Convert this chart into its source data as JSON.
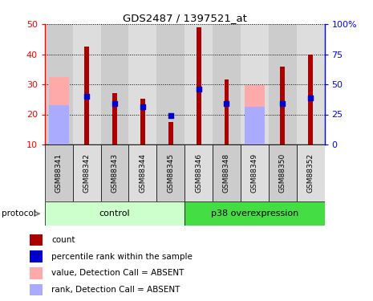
{
  "title": "GDS2487 / 1397521_at",
  "samples": [
    "GSM88341",
    "GSM88342",
    "GSM88343",
    "GSM88344",
    "GSM88345",
    "GSM88346",
    "GSM88348",
    "GSM88349",
    "GSM88350",
    "GSM88352"
  ],
  "count_values": [
    null,
    42.5,
    27.0,
    25.2,
    17.5,
    49.0,
    31.5,
    null,
    36.0,
    40.0
  ],
  "percentile_values": [
    null,
    26.0,
    23.5,
    22.5,
    19.7,
    28.5,
    23.5,
    null,
    23.5,
    25.5
  ],
  "absent_value_values": [
    32.5,
    null,
    null,
    null,
    null,
    null,
    null,
    29.8,
    null,
    null
  ],
  "absent_rank_values": [
    23.0,
    null,
    null,
    null,
    null,
    null,
    null,
    22.5,
    null,
    null
  ],
  "ylim_left": [
    10,
    50
  ],
  "ylim_right": [
    0,
    100
  ],
  "yticks_left": [
    10,
    20,
    30,
    40,
    50
  ],
  "yticks_right": [
    0,
    25,
    50,
    75,
    100
  ],
  "ytick_labels_right": [
    "0",
    "25",
    "50",
    "75",
    "100%"
  ],
  "bar_color_red": "#aa0000",
  "bar_color_blue": "#0000cc",
  "bar_color_pink": "#ffaaaa",
  "bar_color_lightblue": "#aaaaff",
  "control_label": "control",
  "p38_label": "p38 overexpression",
  "control_color": "#ccffcc",
  "p38_color": "#44dd44",
  "protocol_label": "protocol",
  "legend_items": [
    {
      "color": "#aa0000",
      "label": "count"
    },
    {
      "color": "#0000cc",
      "label": "percentile rank within the sample"
    },
    {
      "color": "#ffaaaa",
      "label": "value, Detection Call = ABSENT"
    },
    {
      "color": "#aaaaff",
      "label": "rank, Detection Call = ABSENT"
    }
  ]
}
